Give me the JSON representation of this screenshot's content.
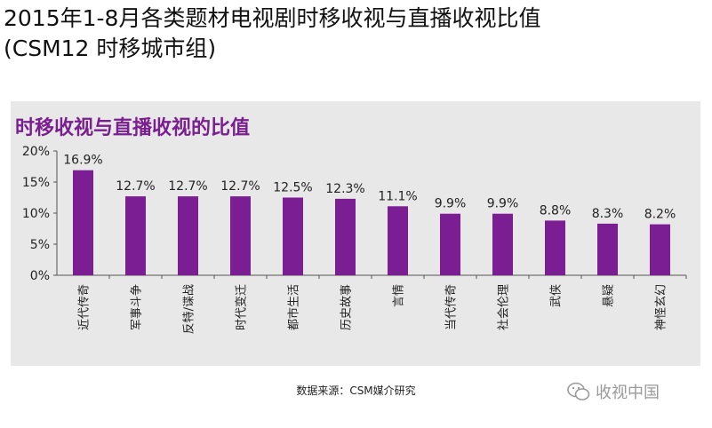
{
  "page": {
    "title_line1": "2015年1-8月各类题材电视剧时移收视与直播收视比值",
    "title_line2": "(CSM12 时移城市组)"
  },
  "chart_data": {
    "type": "bar",
    "title": "时移收视与直播收视的比值",
    "categories": [
      "近代传奇",
      "军事斗争",
      "反特/谍战",
      "时代变迁",
      "都市生活",
      "历史故事",
      "言情",
      "当代传奇",
      "社会伦理",
      "武侠",
      "悬疑",
      "神怪玄幻"
    ],
    "values": [
      16.9,
      12.7,
      12.7,
      12.7,
      12.5,
      12.3,
      11.1,
      9.9,
      9.9,
      8.8,
      8.3,
      8.2
    ],
    "value_labels": [
      "16.9%",
      "12.7%",
      "12.7%",
      "12.7%",
      "12.5%",
      "12.3%",
      "11.1%",
      "9.9%",
      "9.9%",
      "8.8%",
      "8.3%",
      "8.2%"
    ],
    "ylim": [
      0,
      20
    ],
    "yticks": [
      0,
      5,
      10,
      15,
      20
    ],
    "ytick_labels": [
      "0%",
      "5%",
      "10%",
      "15%",
      "20%"
    ],
    "xlabel": "",
    "ylabel": "",
    "grid": false,
    "legend": "none"
  },
  "colors": {
    "bar": "#7b1d93",
    "title": "#7a1f8f",
    "panel": "#e8e8e8"
  },
  "footer": {
    "source": "数据来源：CSM媒介研究",
    "watermark": "收视中国",
    "watermark_icon": "wechat-icon"
  }
}
